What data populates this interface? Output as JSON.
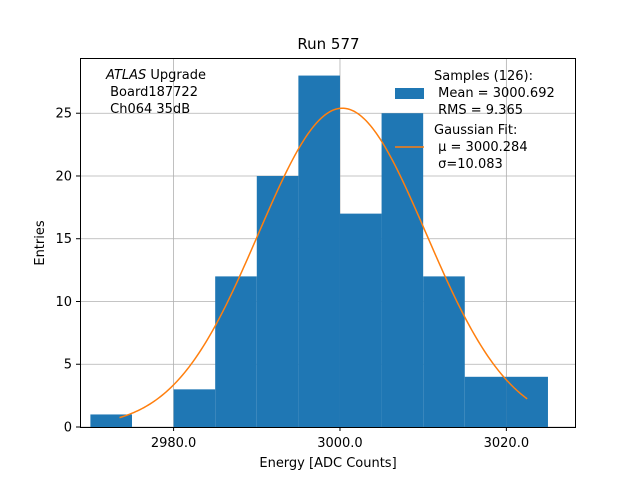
{
  "chart_data": {
    "type": "bar",
    "title": "Run 577",
    "xlabel": "Energy [ADC Counts]",
    "ylabel": "Entries",
    "xlim": [
      2968.75,
      3028.25
    ],
    "ylim": [
      0,
      29.4
    ],
    "xticks": [
      2980,
      3000,
      3020
    ],
    "xtick_labels": [
      "2980.0",
      "3000.0",
      "3020.0"
    ],
    "yticks": [
      0,
      5,
      10,
      15,
      20,
      25
    ],
    "ytick_labels": [
      "0",
      "5",
      "10",
      "15",
      "20",
      "25"
    ],
    "grid": true,
    "bin_edges": [
      2970,
      2975,
      2980,
      2985,
      2990,
      2995,
      3000,
      3005,
      3010,
      3015,
      3020,
      3025
    ],
    "counts": [
      1,
      0,
      3,
      12,
      20,
      28,
      17,
      25,
      12,
      4,
      4
    ],
    "fit": {
      "type": "gaussian",
      "mu": 3000.284,
      "sigma": 10.083,
      "peak": 25.4,
      "x_range": [
        2973.5,
        3022.5
      ]
    },
    "colors": {
      "bars": "#1f77b4",
      "fit": "#ff7f0e",
      "grid": "#b0b0b0"
    },
    "legend": {
      "placement": "top-right",
      "samples": {
        "lines": [
          "Samples (126):",
          " Mean = 3000.692",
          " RMS = 9.365"
        ]
      },
      "fit": {
        "lines": [
          "Gaussian Fit:",
          " μ = 3000.284",
          " σ=10.083"
        ]
      }
    },
    "annotation": {
      "italic": "ATLAS",
      "rest": " Upgrade",
      "lines": [
        " Board187722",
        " Ch064 35dB"
      ]
    }
  }
}
